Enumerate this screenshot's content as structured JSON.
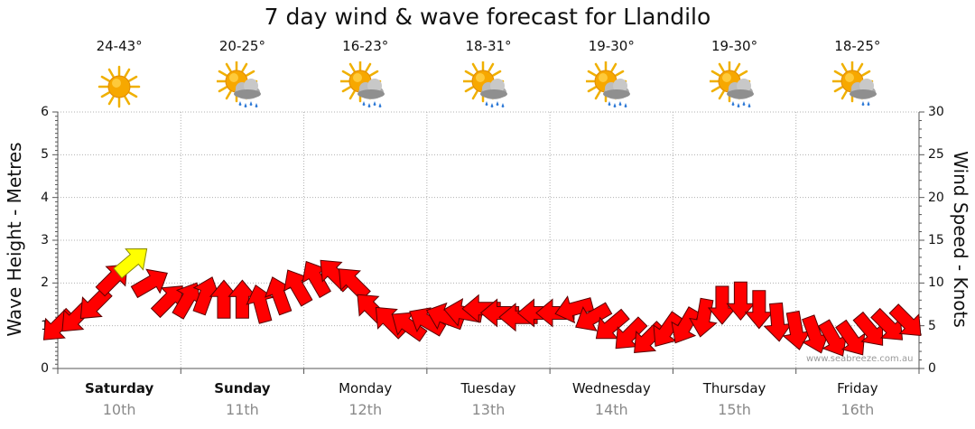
{
  "title": "7 day wind & wave forecast for Llandilo",
  "temperatures": [
    "24-43°",
    "20-25°",
    "16-23°",
    "18-31°",
    "19-30°",
    "19-30°",
    "18-25°"
  ],
  "weather_icons": [
    "sunny-icon",
    "partly-cloudy-rain-icon",
    "partly-cloudy-rain-icon",
    "partly-cloudy-rain-icon",
    "partly-cloudy-rain-icon",
    "partly-cloudy-rain-icon",
    "partly-cloudy-light-rain-icon"
  ],
  "days": [
    {
      "name": "Saturday",
      "date": "10th",
      "bold": true
    },
    {
      "name": "Sunday",
      "date": "11th",
      "bold": true
    },
    {
      "name": "Monday",
      "date": "12th",
      "bold": false
    },
    {
      "name": "Tuesday",
      "date": "13th",
      "bold": false
    },
    {
      "name": "Wednesday",
      "date": "14th",
      "bold": false
    },
    {
      "name": "Thursday",
      "date": "15th",
      "bold": false
    },
    {
      "name": "Friday",
      "date": "16th",
      "bold": false
    }
  ],
  "watermark": "www.seabreeze.com.au",
  "colors": {
    "wind_arrow": "#ff0000",
    "wind_arrow_highlight": "#ffff00",
    "sun": "#f7a800",
    "grid": "#b0b0b0"
  },
  "chart_data": {
    "type": "line",
    "title": "7 day wind & wave forecast for Llandilo",
    "ylabel_left": "Wave Height - Metres",
    "ylabel_right": "Wind Speed - Knots",
    "yticks_left": [
      "0",
      "1",
      "2",
      "3",
      "4",
      "5",
      "6"
    ],
    "yticks_right": [
      "0",
      "5",
      "10",
      "15",
      "20",
      "25",
      "30"
    ],
    "ylim_left": [
      0,
      6
    ],
    "ylim_right": [
      0,
      30
    ],
    "grid": true,
    "x_unit": "days from start of Saturday 10th",
    "series": [
      {
        "name": "Wind Speed - Knots",
        "x": [
          0.0,
          0.15,
          0.3,
          0.45,
          0.6,
          0.75,
          0.9,
          1.05,
          1.2,
          1.35,
          1.5,
          1.65,
          1.8,
          1.95,
          2.1,
          2.25,
          2.4,
          2.55,
          2.7,
          2.85,
          3.0,
          3.15,
          3.3,
          3.45,
          3.6,
          3.75,
          3.9,
          4.05,
          4.2,
          4.35,
          4.5,
          4.65,
          4.8,
          4.95,
          5.1,
          5.25,
          5.4,
          5.55,
          5.7,
          5.85,
          6.0,
          6.15,
          6.3,
          6.45,
          6.6,
          6.75,
          6.9
        ],
        "values": [
          5,
          6,
          7.5,
          10.5,
          12.5,
          10,
          8,
          8,
          8.5,
          8,
          8,
          7.5,
          8.5,
          9.5,
          10.5,
          11,
          10,
          7,
          5.5,
          5,
          5.5,
          6,
          6.5,
          7,
          6.5,
          6,
          6.5,
          6.5,
          7,
          6,
          5,
          4,
          3.5,
          4.5,
          5,
          6,
          7.5,
          8,
          7,
          5.5,
          4.5,
          4,
          3.5,
          3.5,
          4.5,
          5,
          5.5
        ],
        "direction_deg": [
          135,
          135,
          135,
          315,
          320,
          330,
          315,
          300,
          290,
          270,
          270,
          255,
          250,
          240,
          240,
          225,
          225,
          225,
          225,
          215,
          210,
          200,
          190,
          180,
          180,
          180,
          180,
          180,
          165,
          150,
          140,
          135,
          135,
          125,
          120,
          100,
          90,
          90,
          90,
          85,
          80,
          70,
          60,
          55,
          50,
          45,
          45
        ]
      }
    ],
    "wind_arrows_note": "arrows point in wind direction, one yellow highlighted arrow marks the maximum"
  }
}
